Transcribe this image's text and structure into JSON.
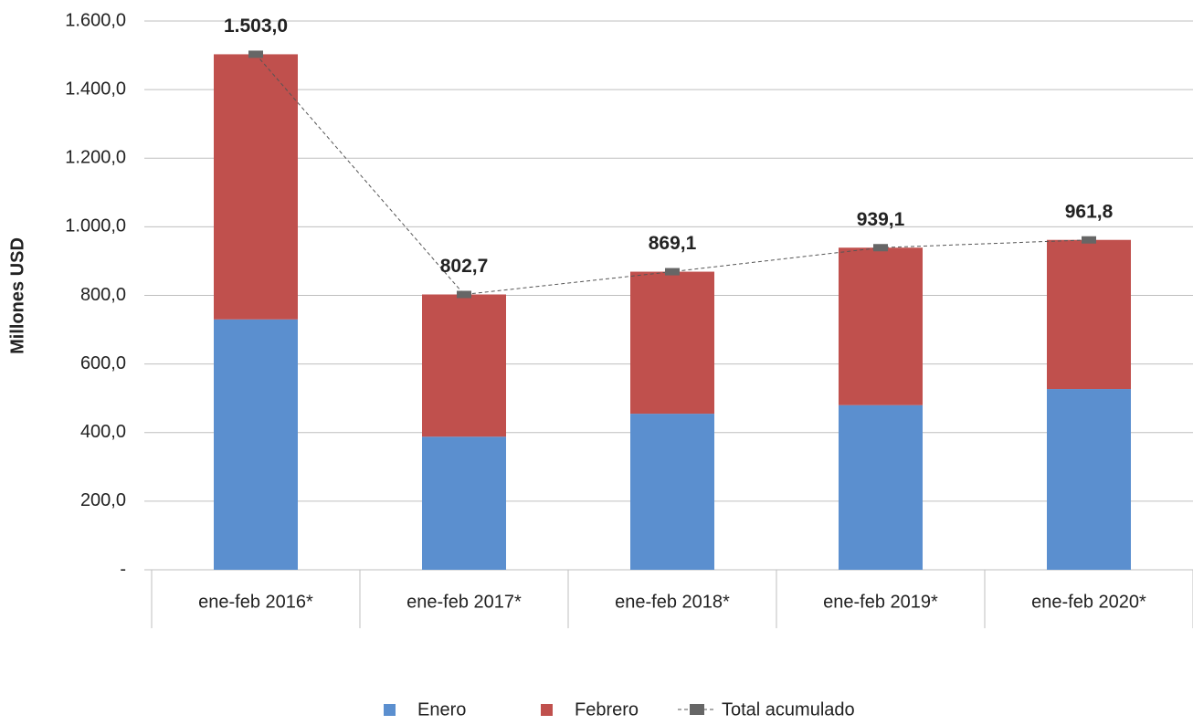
{
  "chart_data": {
    "type": "bar",
    "stacked": true,
    "y_axis_label": "Millones USD",
    "categories": [
      "ene-feb 2016*",
      "ene-feb 2017*",
      "ene-feb 2018*",
      "ene-feb 2019*",
      "ene-feb 2020*"
    ],
    "series": [
      {
        "name": "Enero",
        "color": "#5b8fcf",
        "values": [
          730,
          388,
          455,
          480,
          527
        ]
      },
      {
        "name": "Febrero",
        "color": "#c0504d",
        "values": [
          773,
          414.7,
          414.1,
          459.1,
          434.8
        ]
      },
      {
        "name": "Total acumulado",
        "type": "line",
        "color": "#666666",
        "values": [
          1503.0,
          802.7,
          869.1,
          939.1,
          961.8
        ],
        "value_labels": [
          "1.503,0",
          "802,7",
          "869,1",
          "939,1",
          "961,8"
        ]
      }
    ],
    "ylim": [
      0,
      1600
    ],
    "yticks": [
      {
        "value": 0,
        "label": "-"
      },
      {
        "value": 200,
        "label": "200,0"
      },
      {
        "value": 400,
        "label": "400,0"
      },
      {
        "value": 600,
        "label": "600,0"
      },
      {
        "value": 800,
        "label": "800,0"
      },
      {
        "value": 1000,
        "label": "1.000,0"
      },
      {
        "value": 1200,
        "label": "1.200,0"
      },
      {
        "value": 1400,
        "label": "1.400,0"
      },
      {
        "value": 1600,
        "label": "1.600,0"
      }
    ],
    "grid": true,
    "legend": "bottom"
  }
}
